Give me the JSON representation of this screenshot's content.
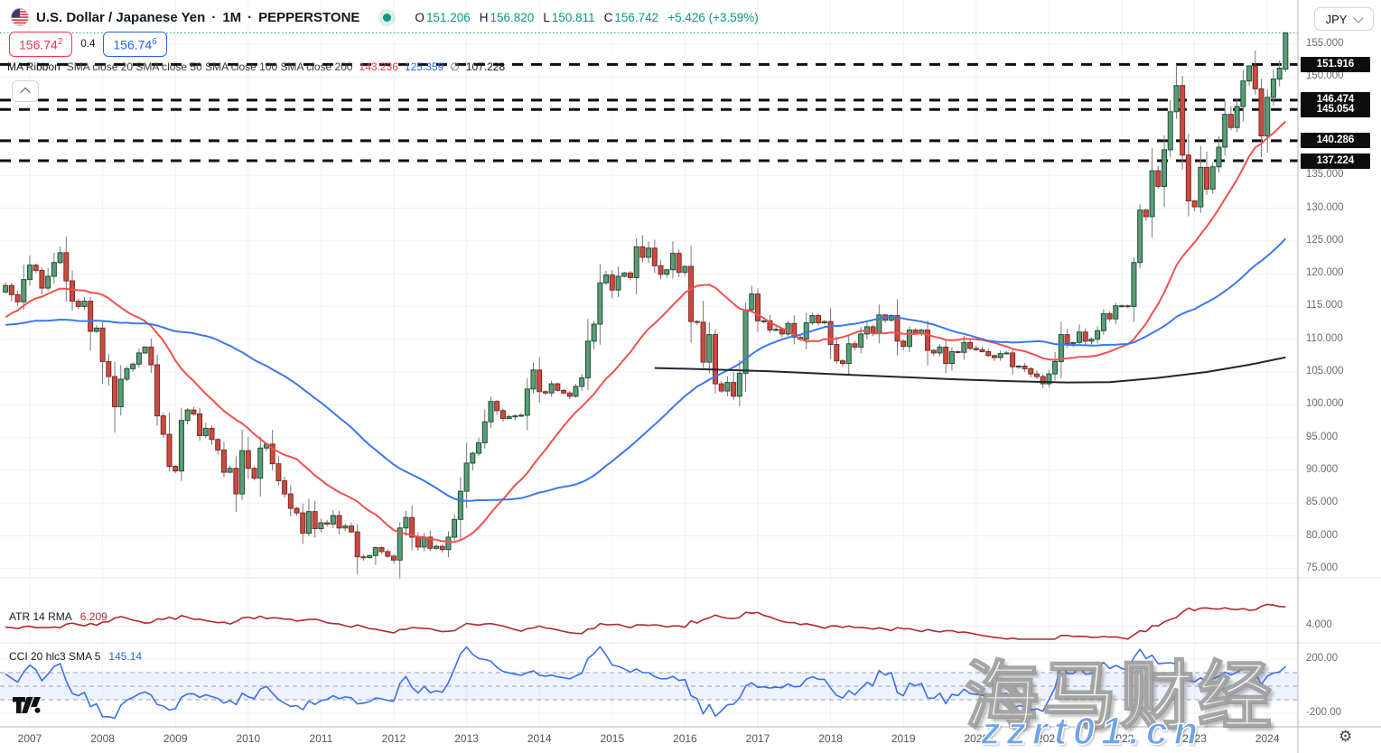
{
  "header": {
    "symbol": "U.S. Dollar / Japanese Yen",
    "sep": "·",
    "interval": "1M",
    "exchange": "PEPPERSTONE",
    "ohlc": {
      "o_label": "O",
      "o": "151.206",
      "h_label": "H",
      "h": "156.820",
      "l_label": "L",
      "l": "150.811",
      "c_label": "C",
      "c": "156.742",
      "change": "+5.426 (+3.59%)"
    },
    "sell_main": "156.74",
    "sell_sup": "2",
    "spread": "0.4",
    "buy_main": "156.74",
    "buy_sup": "6"
  },
  "ma_legend": {
    "name": "MA Ribbon",
    "params": "SMA close 20 SMA close 50 SMA close 100 SMA close 200",
    "v20": "143.236",
    "v50": "125.359",
    "v100": "∅",
    "v200": "107.228"
  },
  "atr": {
    "label": "ATR 14 RMA",
    "value": "6.209",
    "axis_tick": "4.000"
  },
  "cci": {
    "label": "CCI 20 hlc3 SMA 5",
    "value": "145.14",
    "axis_tick_high": "200.00",
    "axis_tick_low": "-200.00"
  },
  "price_axis": {
    "currency": "JPY",
    "ticks": [
      "155.000",
      "150.000",
      "135.000",
      "130.000",
      "125.000",
      "120.000",
      "115.000",
      "110.000",
      "105.000",
      "100.000",
      "95.000",
      "90.000",
      "85.000",
      "80.000",
      "75.000"
    ]
  },
  "time_axis": {
    "years": [
      "2007",
      "2008",
      "2009",
      "2010",
      "2011",
      "2012",
      "2013",
      "2014",
      "2015",
      "2016",
      "2017",
      "2018",
      "2019",
      "2020",
      "2021",
      "2022",
      "2023",
      "2024"
    ]
  },
  "watermark": {
    "line1": "海马财经",
    "line2": "zzrt01.cn"
  },
  "colors": {
    "up_body": "#5a9e78",
    "up_border": "#1e4d33",
    "down_body": "#cc4a42",
    "down_border": "#7a2b24",
    "wick": "#75787d",
    "sma20": "#f0524f",
    "sma50": "#3b78f0",
    "sma200": "#23262e",
    "atr_line": "#b22833",
    "cci_line": "#3d6df0",
    "accent": "#089981",
    "sell": "#f23645",
    "buy": "#2962ff",
    "level_line": "#0f0f0f",
    "badge_bg": "#0d0d0d",
    "grid": "#f0f2f6",
    "divider": "#e3e5ea",
    "axis_border": "#b2b5be",
    "cci_band": "rgba(41,98,255,0.08)",
    "cci_dash": "#9aa0a8"
  },
  "chart_data": {
    "type": "candlestick",
    "title": "U.S. Dollar / Japanese Yen, 1M, PEPPERSTONE",
    "last_bar": {
      "open": 151.206,
      "high": 156.82,
      "low": 150.811,
      "close": 156.742
    },
    "last_price": 156.742,
    "visible_price_range": [
      75,
      157
    ],
    "closes_start": "2007-01",
    "closes": [
      121.3,
      120.5,
      117.8,
      119.6,
      121.7,
      123.2,
      118.9,
      115.8,
      115.0,
      115.8,
      111.2,
      111.7,
      106.6,
      104.3,
      99.7,
      103.9,
      105.5,
      106.2,
      107.9,
      108.8,
      106.1,
      98.3,
      95.5,
      90.6,
      89.9,
      97.6,
      99.2,
      98.6,
      95.3,
      96.4,
      94.7,
      93.1,
      89.7,
      90.3,
      86.4,
      93.0,
      90.3,
      88.8,
      93.4,
      94.0,
      91.0,
      88.4,
      86.4,
      84.2,
      83.5,
      80.4,
      83.7,
      81.1,
      82.0,
      81.8,
      83.1,
      81.2,
      81.5,
      80.6,
      76.8,
      76.7,
      77.0,
      78.2,
      77.6,
      76.9,
      76.3,
      81.2,
      82.8,
      79.8,
      78.3,
      79.8,
      78.1,
      78.4,
      77.9,
      79.8,
      82.5,
      86.8,
      91.1,
      92.6,
      94.2,
      97.4,
      100.5,
      99.1,
      97.9,
      98.2,
      98.3,
      98.4,
      102.4,
      105.3,
      102.0,
      101.8,
      103.2,
      102.2,
      101.8,
      101.3,
      102.8,
      104.1,
      109.7,
      112.3,
      118.6,
      119.8,
      117.5,
      119.6,
      120.1,
      119.4,
      124.1,
      122.5,
      123.9,
      121.2,
      119.9,
      120.6,
      123.1,
      120.2,
      121.1,
      112.7,
      112.6,
      106.5,
      110.7,
      103.2,
      102.1,
      103.4,
      101.3,
      104.8,
      114.5,
      116.9,
      112.8,
      112.8,
      111.4,
      111.5,
      110.8,
      112.4,
      110.3,
      110.0,
      112.5,
      113.6,
      112.5,
      112.7,
      109.2,
      106.7,
      106.3,
      109.3,
      108.8,
      110.8,
      111.9,
      111.0,
      113.7,
      112.9,
      113.6,
      109.7,
      108.9,
      111.4,
      110.9,
      111.4,
      108.3,
      107.9,
      108.8,
      106.3,
      108.1,
      108.0,
      109.5,
      108.6,
      108.4,
      108.1,
      107.5,
      107.2,
      107.8,
      107.9,
      105.8,
      105.9,
      105.5,
      104.7,
      104.3,
      103.2,
      104.7,
      106.6,
      110.7,
      109.3,
      109.5,
      111.1,
      109.7,
      110.0,
      111.3,
      113.9,
      113.1,
      115.1,
      115.1,
      115.0,
      121.7,
      129.7,
      128.7,
      135.7,
      133.3,
      138.9,
      144.7,
      148.7,
      138.1,
      131.1,
      130.2,
      136.2,
      132.9,
      136.3,
      139.3,
      144.3,
      142.3,
      145.5,
      149.4,
      151.7,
      148.2,
      141.0,
      146.9,
      149.7,
      151.35,
      156.742
    ],
    "seed_start": "2003-01",
    "seed_closes": [
      118.7,
      118.1,
      118.1,
      119.0,
      119.4,
      119.9,
      120.6,
      116.8,
      111.4,
      108.2,
      109.5,
      107.1,
      105.9,
      109.3,
      104.2,
      110.4,
      109.6,
      108.9,
      111.2,
      109.0,
      110.1,
      105.9,
      103.0,
      102.6,
      103.6,
      104.7,
      107.2,
      104.8,
      108.2,
      110.9,
      112.9,
      110.7,
      113.3,
      115.7,
      119.9,
      117.9,
      117.2,
      116.3,
      117.5,
      113.8,
      111.7,
      114.5,
      114.7,
      117.2,
      118.2,
      116.8,
      115.7,
      119.1
    ],
    "overrides": {
      "5": {
        "high": 124.14
      },
      "14": {
        "low": 95.76
      },
      "57": {
        "low": 75.57
      },
      "101": {
        "high": 125.86
      },
      "189": {
        "high": 151.94
      },
      "201": {
        "high": 151.71
      },
      "207": {
        "open": 151.206,
        "high": 156.82,
        "low": 150.811,
        "close": 156.742
      }
    },
    "levels": [
      {
        "label": "151.916",
        "price": 151.916
      },
      {
        "label": "146.474",
        "price": 146.474
      },
      {
        "label": "145.054",
        "price": 145.054
      },
      {
        "label": "140.286",
        "price": 140.286
      },
      {
        "label": "137.224",
        "price": 137.224
      }
    ],
    "sma200_points": [
      [
        103,
        105.6
      ],
      [
        112,
        105.4
      ],
      [
        122,
        105.1
      ],
      [
        132,
        104.7
      ],
      [
        142,
        104.3
      ],
      [
        152,
        103.9
      ],
      [
        162,
        103.6
      ],
      [
        171,
        103.4
      ],
      [
        178,
        103.45
      ],
      [
        186,
        104.1
      ],
      [
        194,
        105.0
      ],
      [
        201,
        106.1
      ],
      [
        207,
        107.23
      ]
    ],
    "indicators": [
      {
        "name": "MA Ribbon",
        "series": [
          "SMA 20",
          "SMA 50",
          "SMA 100",
          "SMA 200"
        ],
        "last_values": [
          143.236,
          125.359,
          null,
          107.228
        ]
      },
      {
        "name": "ATR",
        "params": "14 RMA",
        "last_value": 6.209,
        "axis": [
          4.0
        ]
      },
      {
        "name": "CCI",
        "params": "20 hlc3 SMA 5",
        "last_value": 145.14,
        "axis": [
          200,
          -200
        ],
        "bands": [
          100,
          0,
          -100
        ]
      }
    ]
  }
}
